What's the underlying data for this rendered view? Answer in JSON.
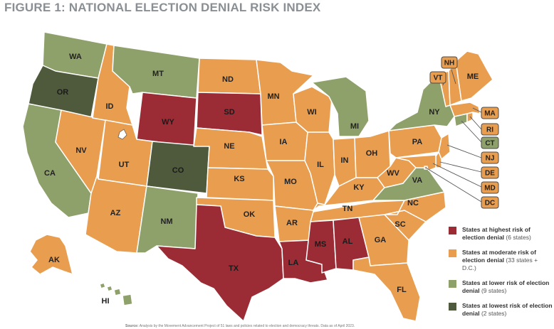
{
  "title": "FIGURE 1: NATIONAL ELECTION DENIAL RISK INDEX",
  "colors": {
    "highest": "#9b2c35",
    "moderate": "#e89d4f",
    "lower": "#8fa16a",
    "lowest": "#4e5a3b"
  },
  "states": {
    "WA": "lower",
    "OR": "lowest",
    "CA": "lower",
    "NV": "moderate",
    "ID": "moderate",
    "MT": "lower",
    "WY": "highest",
    "UT": "moderate",
    "AZ": "moderate",
    "CO": "lowest",
    "NM": "lower",
    "ND": "moderate",
    "SD": "highest",
    "NE": "moderate",
    "KS": "moderate",
    "OK": "moderate",
    "TX": "highest",
    "MN": "moderate",
    "IA": "moderate",
    "MO": "moderate",
    "AR": "moderate",
    "LA": "highest",
    "WI": "moderate",
    "IL": "moderate",
    "MI": "lower",
    "IN": "moderate",
    "OH": "moderate",
    "KY": "moderate",
    "TN": "moderate",
    "MS": "highest",
    "AL": "highest",
    "GA": "moderate",
    "FL": "moderate",
    "SC": "moderate",
    "NC": "moderate",
    "VA": "lower",
    "WV": "moderate",
    "PA": "moderate",
    "NY": "lower",
    "ME": "moderate",
    "VT": "moderate",
    "NH": "moderate",
    "MA": "moderate",
    "RI": "moderate",
    "CT": "lower",
    "NJ": "moderate",
    "DE": "moderate",
    "MD": "moderate",
    "DC": "moderate",
    "AK": "moderate",
    "HI": "lower"
  },
  "callouts": [
    "NH",
    "VT",
    "MA",
    "RI",
    "CT",
    "NJ",
    "DE",
    "MD",
    "DC"
  ],
  "legend": [
    {
      "key": "highest",
      "label": "States at highest risk of election denial",
      "note": "(6 states)"
    },
    {
      "key": "moderate",
      "label": "States at moderate risk of election denial",
      "note": "(33 states + D.C.)"
    },
    {
      "key": "lower",
      "label": "States at lower risk of election denial",
      "note": "(9 states)"
    },
    {
      "key": "lowest",
      "label": "States at lowest risk of election denial",
      "note": "(2 states)"
    }
  ],
  "source_label": "Source:",
  "source_text": "Analysis by the Movement Advancement Project of 51 laws and policies related to election and democracy threats. Data as of April 2023."
}
